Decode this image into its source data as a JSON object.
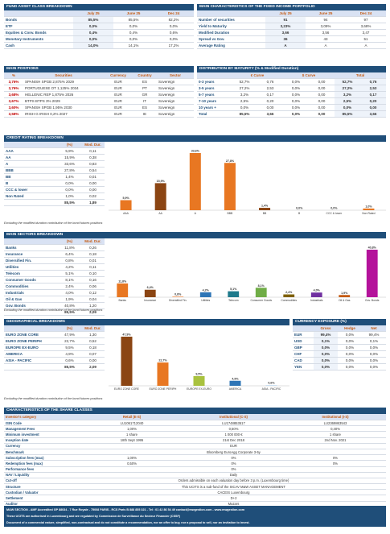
{
  "asset_class": {
    "title": "FUND ASSET CLASS BREAKDOWN",
    "columns": [
      "July 25",
      "June 25",
      "Dec 24"
    ],
    "rows": [
      [
        "Bonds",
        "85,5%",
        "85,5%",
        "82,2%"
      ],
      [
        "ETF",
        "0,0%",
        "0,0%",
        "0,0%"
      ],
      [
        "Equities & Conv. Bonds",
        "0,4%",
        "0,4%",
        "0,6%"
      ],
      [
        "Monetary Instruments",
        "0,0%",
        "0,0%",
        "0,0%"
      ],
      [
        "Cash",
        "14,0%",
        "14,1%",
        "17,2%"
      ]
    ]
  },
  "fixed_income": {
    "title": "MAIN CHARACTERISTICS OF THE FIXED INCOME PORTFOLIO",
    "columns": [
      "July 25",
      "June 25",
      "Dec 24"
    ],
    "rows": [
      [
        "Number of securities",
        "91",
        "94",
        "97"
      ],
      [
        "Yield to Maturity",
        "3,23%",
        "3,09%",
        "3,68%"
      ],
      [
        "Modified Duration",
        "3,66",
        "3,56",
        "3,47"
      ],
      [
        "Spread vs Gov.",
        "36",
        "43",
        "51"
      ],
      [
        "Average Rating",
        "A",
        "A",
        "A"
      ]
    ]
  },
  "positions": {
    "title": "MAIN POSITIONS",
    "columns": [
      "%",
      "Securities",
      "Currency",
      "Country",
      "Sector"
    ],
    "rows": [
      [
        "3,76%",
        "SPANISH SPGB 2,875% 2029",
        "EUR",
        "ES",
        "Sovereign"
      ],
      [
        "3,76%",
        "PORTUGUESE OT 1,125% 2034",
        "EUR",
        "PT",
        "Sovereign"
      ],
      [
        "3,68%",
        "HELLENIC REP 1,875% 2026",
        "EUR",
        "GR",
        "Sovereign"
      ],
      [
        "3,67%",
        "BTPS BTPS 3% 2029",
        "EUR",
        "IT",
        "Sovereign"
      ],
      [
        "3,60%",
        "SPANISH SPGB 1,95% 2030",
        "EUR",
        "ES",
        "Sovereign"
      ],
      [
        "3,58%",
        "IRISH G IRISH 0,2% 2027",
        "EUR",
        "IE",
        "Sovereign"
      ]
    ]
  },
  "maturity": {
    "title": "DISTRIBUTION BY MATURITY (% & Modified Duration)",
    "groups": [
      "€ Curve",
      "$ Curve",
      "Total"
    ],
    "rows": [
      [
        "0-3 years",
        "52,7%",
        "0,76",
        "0,0%",
        "0,00",
        "52,7%",
        "0,76"
      ],
      [
        "3-5 years",
        "27,2%",
        "2,53",
        "0,0%",
        "0,00",
        "27,2%",
        "2,53"
      ],
      [
        "5-7 years",
        "3,2%",
        "0,17",
        "0,0%",
        "0,00",
        "3,2%",
        "0,17"
      ],
      [
        "7-10 years",
        "2,5%",
        "0,20",
        "0,0%",
        "0,00",
        "2,5%",
        "0,20"
      ],
      [
        "10 years +",
        "0,0%",
        "0,00",
        "0,0%",
        "0,00",
        "0,0%",
        "0,00"
      ],
      [
        "Total",
        "85,5%",
        "3,66",
        "0,0%",
        "0,00",
        "85,5%",
        "3,66"
      ]
    ]
  },
  "credit_rating": {
    "title": "CREDIT RATING BREAKDOWN",
    "columns": [
      "(%)",
      "Mod. Dur."
    ],
    "categories": [
      "AAA",
      "AA",
      "A",
      "BBB",
      "BB",
      "B",
      "CCC & lower",
      "Non Rated"
    ],
    "values": [
      5.9,
      15.9,
      33.6,
      27.8,
      1.4,
      0.0,
      0.0,
      1.0
    ],
    "value_labels": [
      "5,9%",
      "15,9%",
      "33,6%",
      "27,8%",
      "1,4%",
      "0,0%",
      "0,0%",
      "1,0%"
    ],
    "mod_dur": [
      "0,11",
      "0,38",
      "0,83",
      "0,54",
      "0,01",
      "0,00",
      "0,00",
      "0,02"
    ],
    "colors": [
      "#e87722",
      "#8b4513",
      "#e87722",
      "#e87722",
      "#8b4513",
      "#e87722",
      "#8b4513",
      "#e87722"
    ],
    "total": [
      "85,5%",
      "1,89"
    ],
    "note": "Excluding the modified duration contribution of the bond futures positions"
  },
  "sectors": {
    "title": "MAIN SECTORS BREAKDOWN",
    "columns": [
      "(%)",
      "Mod. Dur."
    ],
    "categories": [
      "Banks",
      "Insurance",
      "Diversified Fin.",
      "Utilities",
      "Telecom",
      "Consumer Goods",
      "Commodities",
      "Industrials",
      "Oil & Gas",
      "Gov. Bonds"
    ],
    "values": [
      11.8,
      6.4,
      0.8,
      4.2,
      5.1,
      8.1,
      2.4,
      4.0,
      1.9,
      40.8
    ],
    "value_labels": [
      "11,8%",
      "6,4%",
      "0,8%",
      "4,2%",
      "5,1%",
      "8,1%",
      "2,4%",
      "4,0%",
      "1,9%",
      "40,8%"
    ],
    "mod_dur": [
      "0,26",
      "0,18",
      "0,01",
      "0,11",
      "0,10",
      "0,16",
      "0,06",
      "0,12",
      "0,04",
      "1,20"
    ],
    "colors": [
      "#e87722",
      "#8b4513",
      "#f4b183",
      "#2e75b6",
      "#1f7a8c",
      "#70ad47",
      "#7f6000",
      "#7030a0",
      "#c55a11",
      "#b4139b"
    ],
    "total": [
      "85,5%",
      "2,09"
    ],
    "note": "Excluding the modified duration contribution of the bond futures positions"
  },
  "geography": {
    "title": "GEOGRAPHICAL BREAKDOWN",
    "columns": [
      "(%)",
      "Mod. Dur."
    ],
    "categories": [
      "EURO ZONE CORE",
      "EURO ZONE PERIPH",
      "EUROPE EX-EURO",
      "AMERICA",
      "ASIA - PACIFIC"
    ],
    "values": [
      47.9,
      22.7,
      9.5,
      4.9,
      0.6
    ],
    "value_labels": [
      "47,9%",
      "22,7%",
      "9,5%",
      "4,9%",
      "0,6%"
    ],
    "mod_dur": [
      "1,30",
      "0,52",
      "0,18",
      "0,07",
      "0,00"
    ],
    "colors": [
      "#8b4513",
      "#e87722",
      "#a9c23f",
      "#2e75b6",
      "#bdd7ee"
    ],
    "total": [
      "85,5%",
      "2,09"
    ],
    "note": "Excluding the modified duration contribution of the bond futures positions"
  },
  "currency": {
    "title": "CURRENCY EXPOSURE (%)",
    "columns": [
      "Gross",
      "Hedge",
      "Net"
    ],
    "rows": [
      [
        "EUR",
        "99,4%",
        "0,0%",
        "99,4%"
      ],
      [
        "USD",
        "0,1%",
        "0,0%",
        "0,1%"
      ],
      [
        "GBP",
        "0,0%",
        "0,0%",
        "0,0%"
      ],
      [
        "CHF",
        "0,0%",
        "0,0%",
        "0,0%"
      ],
      [
        "CAD",
        "0,0%",
        "0,0%",
        "0,0%"
      ],
      [
        "YEN",
        "0,0%",
        "0,0%",
        "0,0%"
      ]
    ]
  },
  "share_classes": {
    "title": "CHARACTERISTICS OF THE SHARE CLASSES",
    "rows": [
      [
        "Investor's category",
        "Retail (E-S)",
        "Institutional (C-S)",
        "Institutional (I-S)"
      ],
      [
        "ISIN Code",
        "LU1061712040",
        "LU1748853517",
        "LU2369863543"
      ],
      [
        "Management Fees",
        "1,00%",
        "0,50%",
        "0,40%"
      ],
      [
        "Minimum investment",
        "1 share",
        "1 000 000 €",
        "1 share"
      ],
      [
        "Inception date",
        "18th Sept 1995",
        "21st Dec 2018",
        "2nd Nov. 2021"
      ],
      [
        "Currency",
        "EUR"
      ],
      [
        "Benchmark",
        "Bloomberg EuroAgg Corporate 3-5y"
      ],
      [
        "Subscription fees (max)",
        "1,00%",
        "0%",
        "0%"
      ],
      [
        "Redemption fees (max)",
        "0,50%",
        "0%",
        "0%"
      ],
      [
        "Performance fees",
        "0%"
      ],
      [
        "NAV / Liquidity",
        "Daily"
      ],
      [
        "Cut-off",
        "Orders admissible on each valuation day before 3 p.m. (Luxembourg time)"
      ],
      [
        "Structure",
        "This UCITS is a sub-fund of the SICAV M&W ASSET MANAGEMENT"
      ],
      [
        "Custodian / Valuator",
        "CACEIS Luxembourg"
      ],
      [
        "Settlement",
        "D+2"
      ],
      [
        "Auditor",
        "Mazars"
      ]
    ]
  },
  "footer": [
    "M&W SECTION - AMF Accredited GP 88034 - 7 Rue Royale - 75008 PARIS - RCS Paris B 888 855 321 - Tel : 01 42 86 54 49 contact@mwgestion.com - www.mwgestion.com",
    "These UCITS are authorised in Luxembourg and are regulated by Commission de Surveillance du Secteur Financier (CSSF)",
    "Document of a commercial nature, simplified, non-contractual and do not constitute a recommendation, nor an offer to buy, nor a proposal to sell, nor an invitation to invest."
  ]
}
